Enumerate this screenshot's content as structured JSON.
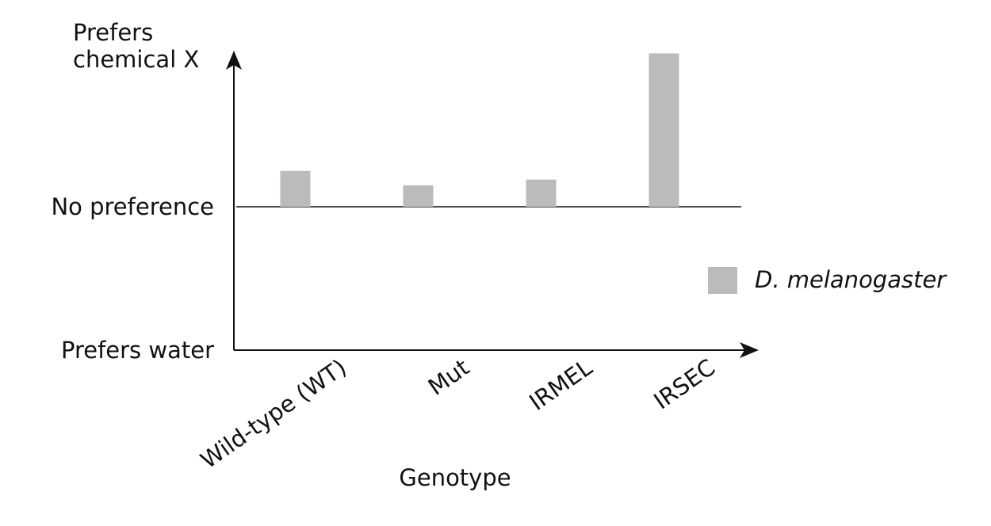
{
  "chart_data": {
    "type": "bar",
    "x_label": "Genotype",
    "categories": [
      "Wild-type (WT)",
      "Mut",
      "IRMEL",
      "IRSEC"
    ],
    "series": [
      {
        "name": "D. melanogaster",
        "color": "#bbbbbb",
        "values": [
          0.25,
          0.15,
          0.19,
          1.07
        ]
      }
    ],
    "ylim": [
      -1,
      1.1
    ],
    "yticks": [
      {
        "value": -1,
        "label": "Prefers water"
      },
      {
        "value": 0,
        "label": "No preference"
      },
      {
        "value": 1.1,
        "label": "Prefers chemical X"
      }
    ]
  }
}
